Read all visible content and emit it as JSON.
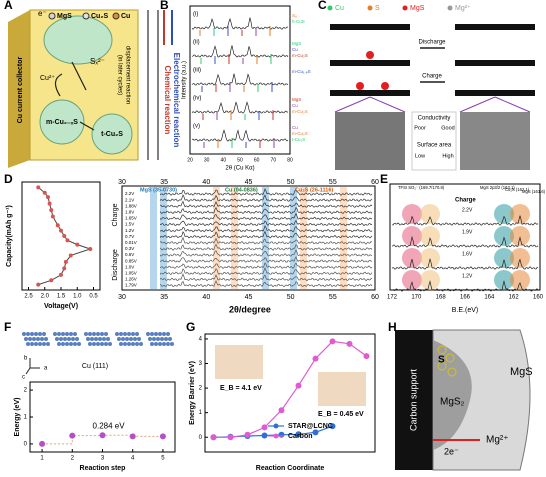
{
  "panel_labels": [
    "A",
    "B",
    "C",
    "D",
    "E",
    "F",
    "G",
    "H"
  ],
  "panel_a": {
    "electron": "e⁻",
    "legend": [
      "MgS",
      "Cu₂S",
      "Cu"
    ],
    "collector": "Cu current collector",
    "cu_ion": "Cu²⁺",
    "polysulfide": "Sₓ²⁻",
    "product_1": "m-Cu₂₋ₓS",
    "product_2": "t-Cu₂S",
    "displacement": "displacement reaction",
    "later": "(in later cycles)",
    "chemical": "Chemical reaction",
    "electrochemical": "Electrochemical reaction"
  },
  "panel_b": {
    "traces": [
      "(i)",
      "(ii)",
      "(iii)",
      "(iv)",
      "(v)"
    ],
    "legend": [
      [
        "S₈",
        "h-CuS"
      ],
      [
        "MgS",
        "Cu",
        "m-Cu₂S"
      ],
      [
        "m-Cu₁.₈S"
      ],
      [
        "MgS",
        "Cu",
        "m-Cu₂S"
      ],
      [
        "Cu",
        "m-Cu₂S",
        "t-Cu₂S"
      ]
    ],
    "y_label": "Intensity (a.u.)",
    "x_label": "2θ (Cu Kα)",
    "x_ticks": [
      20,
      30,
      40,
      50,
      60,
      70,
      80
    ]
  },
  "panel_c": {
    "legend": [
      "Cu",
      "S",
      "MgS",
      "Mg²⁺"
    ],
    "discharge": "Discharge",
    "charge": "Charge",
    "conductivity": "Conductivity",
    "poor": "Poor",
    "good": "Good",
    "surface_area": "Surface area",
    "low": "Low",
    "high": "High"
  },
  "panel_d": {
    "x_label": "2θ/degree",
    "x_ticks": [
      30,
      35,
      40,
      45,
      50,
      55,
      60
    ],
    "phases": [
      "MgS (35-0730)",
      "Cu (04-0836)",
      "Cu₂S (26-1116)"
    ],
    "charge": "Charge",
    "discharge": "Discharge",
    "voltages": [
      "2.2V",
      "2.1V",
      "1.88V",
      "1.8V",
      "1.65V",
      "1.5V",
      "1.2V",
      "0.7V",
      "0.01V",
      "0.3V",
      "0.6V",
      "0.85V",
      "1.0V",
      "1.05V",
      "1.26V",
      "1.79V"
    ]
  },
  "panel_e": {
    "peaks": [
      "TFSI SO₂⁻ (169.7/170.8)",
      "MgS 2p3/2 (163.1)",
      "Cu₂S (162.1)",
      "MgS (161.6)"
    ],
    "charge": "Charge",
    "voltages": [
      "2.2V",
      "1.9V",
      "1.6V",
      "1.2V"
    ],
    "x_ticks": [
      172,
      170,
      168,
      166,
      164,
      162,
      160
    ],
    "x_label": "B.E.(eV)"
  },
  "panel_f": {
    "surface": "Cu (111)",
    "axes": [
      "a",
      "b",
      "c"
    ]
  },
  "panel_h": {
    "support": "Carbon support",
    "s": "S",
    "mgs": "MgS",
    "mgs2": "MgS₂",
    "electron": "2e⁻",
    "mg_ion": "Mg²⁺"
  },
  "chart_data": [
    {
      "type": "line",
      "x_label": "Voltage(V)",
      "y_label": "Capacity(mAh g⁻¹)",
      "x": [
        2.2,
        2.0,
        1.9,
        1.85,
        1.8,
        1.75,
        1.6,
        1.5,
        1.4,
        1.3,
        1.0,
        0.6,
        1.2,
        1.35,
        1.4,
        1.5,
        1.8,
        2.2
      ],
      "values": [
        9.5,
        9.0,
        8.6,
        8.0,
        7.4,
        6.8,
        6.0,
        5.5,
        5.0,
        4.6,
        4.2,
        3.8,
        3.2,
        2.6,
        2.0,
        1.4,
        0.9,
        0.5
      ],
      "color": "#d9534f",
      "xlim": [
        2.7,
        0.3
      ],
      "xticks": [
        2.5,
        {
          "value": 2,
          "label": "2.0"
        },
        1.5,
        {
          "value": 1,
          "label": "1.0"
        },
        0.5
      ],
      "ylim": [
        0,
        10
      ]
    },
    {
      "type": "line",
      "x_label": "Reaction step",
      "y_label": "Energy (eV)",
      "annotation": "0.284 eV",
      "x": [
        1,
        2,
        3,
        4,
        5
      ],
      "values": [
        0,
        0.31,
        0.32,
        0.28,
        0.28
      ],
      "color": "#b44fc8",
      "xlim": [
        0.6,
        5.4
      ],
      "xticks": [
        1,
        2,
        3,
        4,
        5
      ],
      "ylim": [
        -0.3,
        2.3
      ],
      "yticks": [
        0,
        1,
        2
      ]
    },
    {
      "type": "line",
      "x_label": "Reaction Coordinate",
      "y_label": "Energy Barrier (eV)",
      "xlim": [
        -0.5,
        9.5
      ],
      "ylim": [
        -0.6,
        4.2
      ],
      "yticks": [
        0,
        1,
        2,
        3,
        4
      ],
      "annotations": [
        "E_B = 4.1 eV",
        "E_B = 0.45 eV"
      ],
      "series": [
        {
          "name": "STAR@LCNC",
          "color": "#2f6fd6",
          "x": [
            0,
            1,
            2,
            3,
            4,
            5,
            6,
            7
          ],
          "values": [
            0,
            0.02,
            0.05,
            0.07,
            0.1,
            0.12,
            0.2,
            0.45
          ]
        },
        {
          "name": "Carbon",
          "color": "#e05bd0",
          "x": [
            0,
            1,
            2,
            3,
            4,
            5,
            6,
            7,
            8,
            9
          ],
          "values": [
            0,
            0,
            0.1,
            0.4,
            1.1,
            2.1,
            3.2,
            3.9,
            3.8,
            3.3
          ]
        }
      ]
    }
  ]
}
